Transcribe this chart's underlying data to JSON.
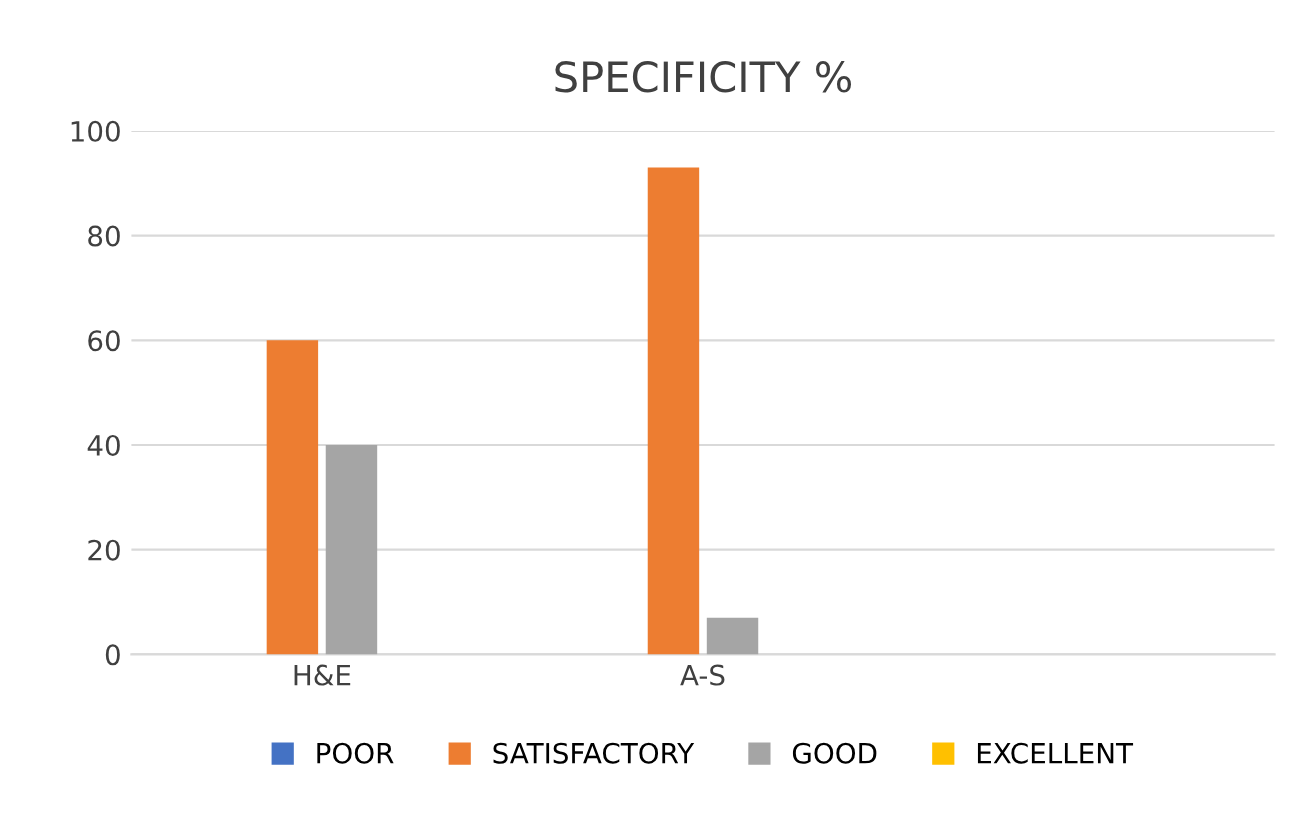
{
  "chart_data": {
    "type": "bar",
    "title": "SPECIFICITY %",
    "categories": [
      "H&E",
      "A-S",
      null
    ],
    "series": [
      {
        "name": "POOR",
        "color": "#4472c4",
        "values": [
          0,
          0,
          null
        ]
      },
      {
        "name": "SATISFACTORY",
        "color": "#ed7d31",
        "values": [
          60,
          93,
          null
        ]
      },
      {
        "name": "GOOD",
        "color": "#a5a5a5",
        "values": [
          40,
          7,
          null
        ]
      },
      {
        "name": "EXCELLENT",
        "color": "#ffc000",
        "values": [
          0,
          0,
          null
        ]
      }
    ],
    "ylim": [
      0,
      100
    ],
    "yticks": [
      0,
      20,
      40,
      60,
      80,
      100
    ],
    "grid": "y",
    "legend": "bottom"
  }
}
